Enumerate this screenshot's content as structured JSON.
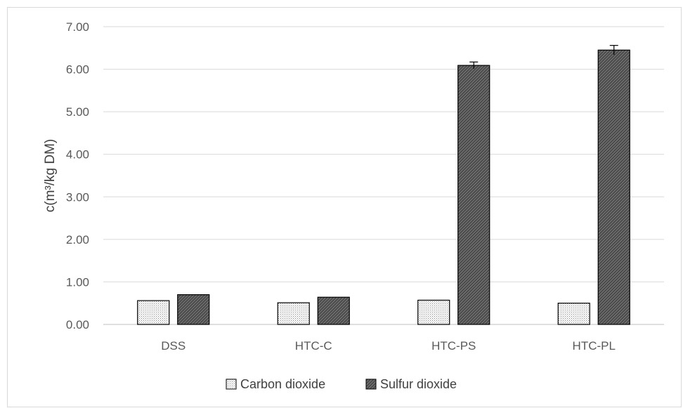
{
  "chart_data": {
    "type": "bar",
    "title": "",
    "xlabel": "",
    "ylabel": "c(m³/kg DM)",
    "ylim": [
      0,
      7
    ],
    "yticks": [
      "0.00",
      "1.00",
      "2.00",
      "3.00",
      "4.00",
      "5.00",
      "6.00",
      "7.00"
    ],
    "categories": [
      "DSS",
      "HTC-C",
      "HTC-PS",
      "HTC-PL"
    ],
    "series": [
      {
        "name": "Carbon dioxide",
        "values": [
          0.56,
          0.51,
          0.57,
          0.5
        ],
        "errors": [
          0,
          0,
          0,
          0
        ],
        "pattern": "dots"
      },
      {
        "name": "Sulfur dioxide",
        "values": [
          0.7,
          0.64,
          6.09,
          6.45
        ],
        "errors": [
          0,
          0,
          0.08,
          0.11
        ],
        "pattern": "diagonal"
      }
    ],
    "grid": true,
    "legend_position": "bottom"
  },
  "colors": {
    "grid": "#d9d9d9",
    "bar_stroke": "#000000",
    "text": "#595959"
  }
}
